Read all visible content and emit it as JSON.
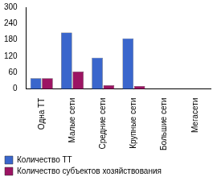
{
  "chart_data": {
    "type": "bar",
    "categories": [
      "Одна ТТ",
      "Малые сети",
      "Средние сети",
      "Крупные сети",
      "Большие сети",
      "Мегасети"
    ],
    "series": [
      {
        "name": "Количество ТТ",
        "color": "#3a66cc",
        "values": [
          40,
          207,
          115,
          186,
          0,
          0
        ]
      },
      {
        "name": "Количество субъектов хозяйствования",
        "color": "#9c1463",
        "values": [
          40,
          64,
          14,
          11,
          0,
          0
        ]
      }
    ],
    "ylim": [
      0,
      300
    ],
    "yticks": [
      0,
      60,
      120,
      180,
      240,
      300
    ],
    "grid": false,
    "legend": "bottom"
  }
}
